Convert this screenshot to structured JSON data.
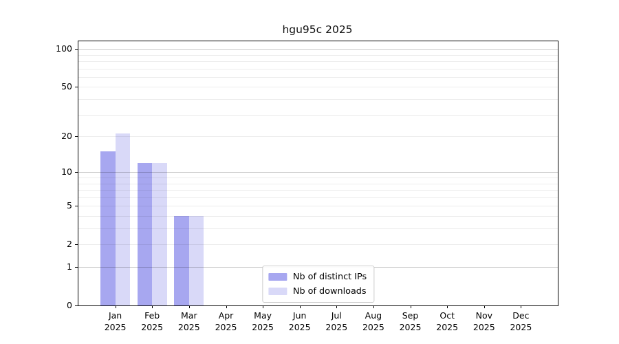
{
  "chart_data": {
    "type": "bar",
    "title": "hgu95c 2025",
    "xlabel": "",
    "ylabel": "",
    "categories": [
      "Jan",
      "Feb",
      "Mar",
      "Apr",
      "May",
      "Jun",
      "Jul",
      "Aug",
      "Sep",
      "Oct",
      "Nov",
      "Dec"
    ],
    "x_year_label": "2025",
    "series": [
      {
        "name": "Nb of distinct IPs",
        "color": "#a7a7f0",
        "values": [
          15,
          12,
          4,
          0,
          0,
          0,
          0,
          0,
          0,
          0,
          0,
          0
        ]
      },
      {
        "name": "Nb of downloads",
        "color": "#d9d9f8",
        "values": [
          21,
          12,
          4,
          0,
          0,
          0,
          0,
          0,
          0,
          0,
          0,
          0
        ]
      }
    ],
    "yscale": "log10(1+x)",
    "ylim": [
      0,
      116
    ],
    "yticks_labeled": [
      0,
      1,
      2,
      5,
      10,
      20,
      50,
      100
    ],
    "ygrid_major": [
      1,
      10,
      100
    ],
    "ygrid_minor": [
      2,
      3,
      4,
      5,
      6,
      7,
      8,
      9,
      20,
      30,
      40,
      50,
      60,
      70,
      80,
      90
    ],
    "grid": true,
    "legend_position": "lower center",
    "bar_width_fraction": 0.4
  },
  "colors": {
    "background": "#ffffff",
    "axis": "#000000",
    "major_grid_rgba": "rgba(0,0,0,0.21)",
    "minor_grid_rgba": "rgba(0,0,0,0.075)",
    "text": "#000000"
  }
}
